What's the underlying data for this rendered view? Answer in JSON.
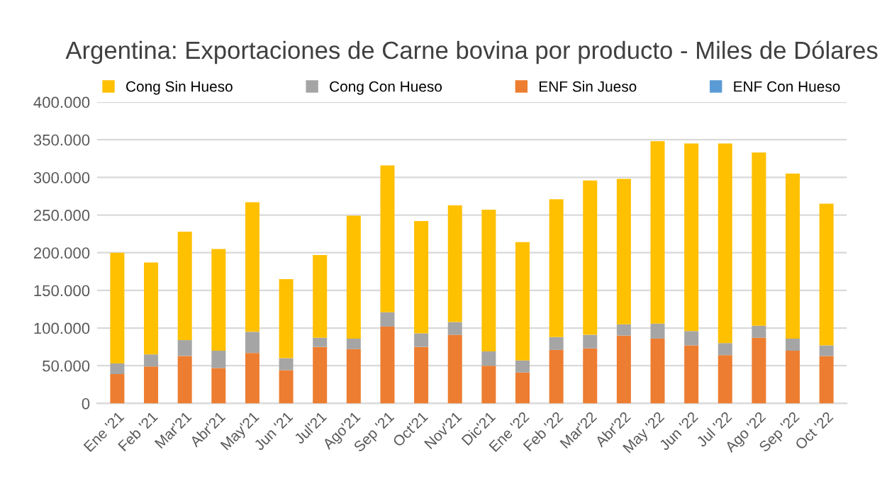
{
  "chart_data": {
    "type": "bar",
    "stacked": true,
    "title": "Argentina: Exportaciones de Carne bovina por producto - Miles de Dólares",
    "categories": [
      "Ene '21",
      "Feb '21",
      "Mar'21",
      "Abr'21",
      "May'21",
      "Jun '21",
      "Jul'21",
      "Ago'21",
      "Sep '21",
      "Oct'21",
      "Nov'21",
      "Dic'21",
      "Ene '22",
      "Feb '22",
      "Mar'22",
      "Abr'22",
      "May '22",
      "Jun '22",
      "Jul '22",
      "Ago '22",
      "Sep '22",
      "Oct '22"
    ],
    "series": [
      {
        "name": "ENF Con Hueso",
        "color": "#5b9bd5",
        "values": [
          0,
          0,
          0,
          0,
          0,
          0,
          0,
          0,
          0,
          0,
          0,
          0,
          0,
          0,
          0,
          0,
          0,
          0,
          0,
          0,
          0,
          0
        ]
      },
      {
        "name": "ENF Sin Jueso",
        "color": "#ed7d31",
        "values": [
          39000,
          49000,
          63000,
          47000,
          67000,
          44000,
          75000,
          72000,
          102000,
          75000,
          91000,
          50000,
          41000,
          71000,
          73000,
          90000,
          86000,
          77000,
          64000,
          87000,
          70000,
          63000
        ]
      },
      {
        "name": "Cong Con Hueso",
        "color": "#a5a5a5",
        "values": [
          14000,
          16000,
          21000,
          23000,
          28000,
          16000,
          12000,
          14000,
          19000,
          18000,
          17000,
          19000,
          16000,
          17000,
          18000,
          15000,
          20000,
          19000,
          16000,
          16000,
          16000,
          14000
        ]
      },
      {
        "name": "Cong Sin Hueso",
        "color": "#ffc000",
        "values": [
          147000,
          122000,
          144000,
          135000,
          172000,
          105000,
          110000,
          163000,
          195000,
          149000,
          155000,
          188000,
          157000,
          183000,
          205000,
          193000,
          242000,
          249000,
          265000,
          230000,
          219000,
          188000
        ]
      }
    ],
    "ylim": [
      0,
      400000
    ],
    "yticks": [
      0,
      {
        "value": 50000,
        "label": "50.000"
      },
      {
        "value": 100000,
        "label": "100.000"
      },
      {
        "value": 150000,
        "label": "150.000"
      },
      {
        "value": 200000,
        "label": "200.000"
      },
      {
        "value": 250000,
        "label": "250.000"
      },
      {
        "value": 300000,
        "label": "300.000"
      },
      {
        "value": 350000,
        "label": "350.000"
      },
      {
        "value": 400000,
        "label": "400.000"
      }
    ],
    "grid": "y",
    "legend": "top"
  }
}
